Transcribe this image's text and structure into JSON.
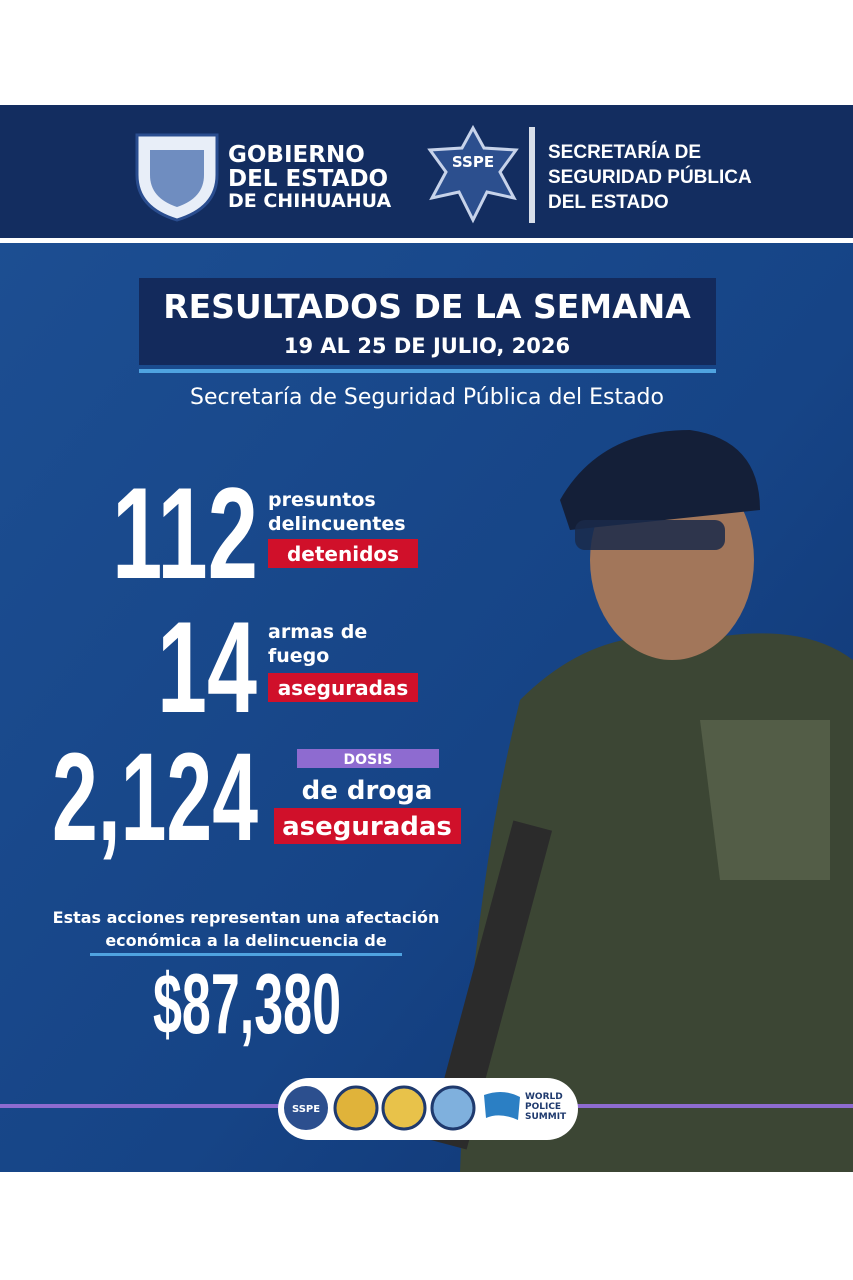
{
  "header": {
    "government": [
      "GOBIERNO",
      "DEL ESTADO",
      "DE CHIHUAHUA"
    ],
    "badge": "SSPE",
    "secretariat": [
      "SECRETARÍA DE",
      "SEGURIDAD PÚBLICA",
      "DEL ESTADO"
    ]
  },
  "title": "RESULTADOS DE LA SEMANA",
  "date": "19 AL 25 DE JULIO, 2026",
  "subtitle": "Secretaría de Seguridad Pública del Estado",
  "stats": [
    {
      "number": "112",
      "lines": [
        "presuntos",
        "delincuentes"
      ],
      "highlight": "detenidos"
    },
    {
      "number": "14",
      "lines": [
        "armas de",
        "fuego"
      ],
      "highlight": "aseguradas"
    },
    {
      "number": "2,124",
      "tag": "DOSIS",
      "lines": [
        "de droga"
      ],
      "highlight": "aseguradas"
    }
  ],
  "impact": {
    "lines": [
      "Estas acciones representan una afectación",
      "económica a la delincuencia de"
    ],
    "amount": "$87,380"
  },
  "footer": {
    "badge": "SSPE",
    "summit": [
      "WORLD",
      "POLICE",
      "SUMMIT"
    ]
  }
}
